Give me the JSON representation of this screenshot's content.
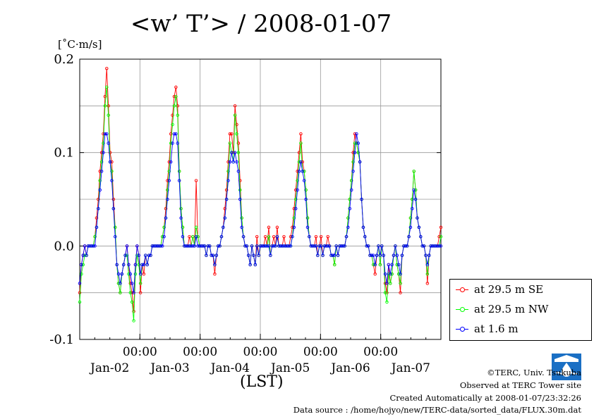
{
  "title": "<w’ T’> / 2008-01-07",
  "unit_label": "[˚C·m/s]",
  "x_axis_label": "(LST)",
  "credits": {
    "copyright": "©TERC, Univ. Tsukuba",
    "site": "Observed at TERC Tower site",
    "created": "Created Automatically at 2008-01-07/23:32:26",
    "source": "Data source : /home/hojyo/new/TERC-data/sorted_data/FLUX.30m.dat"
  },
  "colors": {
    "se": "#ff0000",
    "nw": "#00ff00",
    "low": "#0000ff"
  },
  "chart_data": {
    "type": "line",
    "ylim": [
      -0.1,
      0.2
    ],
    "y_ticks": [
      -0.1,
      0.0,
      0.1,
      0.2
    ],
    "y_tick_labels": [
      "-0.1",
      "0.0",
      "0.1",
      "0.2"
    ],
    "x_range_days": [
      0,
      6
    ],
    "x_tick_time_labels": [
      "00:00",
      "00:00",
      "00:00",
      "00:00",
      "00:00"
    ],
    "x_date_labels": [
      "Jan-02",
      "Jan-03",
      "Jan-04",
      "Jan-05",
      "Jan-06",
      "Jan-07"
    ],
    "grid": true,
    "legend_position": "right",
    "series": [
      {
        "name": "at 29.5 m SE",
        "color": "#ff0000",
        "values": [
          -0.05,
          -0.02,
          -0.01,
          0.0,
          -0.01,
          0.0,
          0.0,
          0.0,
          0.0,
          0.01,
          0.03,
          0.05,
          0.08,
          0.1,
          0.12,
          0.16,
          0.19,
          0.15,
          0.1,
          0.09,
          0.05,
          0.02,
          -0.02,
          -0.04,
          -0.05,
          -0.03,
          -0.02,
          -0.01,
          0.0,
          -0.02,
          -0.04,
          -0.05,
          -0.07,
          -0.02,
          0.0,
          -0.01,
          -0.05,
          -0.02,
          -0.03,
          -0.01,
          -0.02,
          -0.01,
          -0.01,
          0.0,
          0.0,
          0.0,
          0.0,
          0.0,
          0.0,
          0.01,
          0.02,
          0.04,
          0.07,
          0.09,
          0.12,
          0.14,
          0.16,
          0.17,
          0.15,
          0.08,
          0.04,
          0.02,
          0.0,
          0.0,
          0.0,
          0.01,
          0.0,
          0.01,
          0.0,
          0.07,
          0.01,
          0.0,
          0.0,
          0.0,
          0.0,
          -0.01,
          0.0,
          0.0,
          -0.01,
          -0.01,
          -0.03,
          -0.01,
          0.0,
          0.0,
          0.01,
          0.02,
          0.04,
          0.06,
          0.09,
          0.12,
          0.12,
          0.1,
          0.15,
          0.13,
          0.11,
          0.07,
          0.03,
          0.01,
          0.0,
          0.0,
          -0.01,
          -0.02,
          0.0,
          -0.01,
          -0.02,
          0.01,
          -0.01,
          0.0,
          0.0,
          0.0,
          0.01,
          0.0,
          0.02,
          -0.01,
          0.0,
          0.01,
          0.0,
          0.02,
          0.0,
          0.0,
          0.0,
          0.01,
          0.0,
          0.0,
          0.0,
          0.01,
          0.02,
          0.04,
          0.06,
          0.08,
          0.1,
          0.12,
          0.09,
          0.08,
          0.06,
          0.03,
          0.01,
          0.0,
          0.0,
          0.0,
          0.01,
          -0.01,
          0.0,
          0.01,
          -0.01,
          0.0,
          0.0,
          0.01,
          0.0,
          -0.01,
          -0.01,
          -0.02,
          0.0,
          -0.01,
          0.0,
          0.0,
          0.0,
          0.0,
          0.01,
          0.03,
          0.05,
          0.07,
          0.1,
          0.12,
          0.11,
          0.1,
          0.09,
          0.05,
          0.02,
          0.01,
          0.0,
          0.0,
          -0.01,
          -0.01,
          -0.02,
          -0.03,
          -0.01,
          0.0,
          -0.02,
          0.0,
          -0.01,
          -0.04,
          -0.05,
          -0.02,
          -0.04,
          -0.03,
          -0.01,
          0.0,
          -0.02,
          -0.03,
          -0.05,
          -0.01,
          0.0,
          0.0,
          0.0,
          0.01,
          0.03,
          0.05,
          0.08,
          0.06,
          0.03,
          0.02,
          0.01,
          0.0,
          0.0,
          -0.01,
          -0.04,
          -0.01,
          0.0,
          0.0,
          0.0,
          0.0,
          0.0,
          0.01,
          0.02
        ]
      },
      {
        "name": "at 29.5 m NW",
        "color": "#00ff00",
        "values": [
          -0.06,
          -0.03,
          -0.02,
          -0.01,
          -0.01,
          0.0,
          0.0,
          0.0,
          0.0,
          0.01,
          0.02,
          0.04,
          0.07,
          0.09,
          0.11,
          0.15,
          0.17,
          0.14,
          0.09,
          0.08,
          0.04,
          0.02,
          -0.02,
          -0.04,
          -0.05,
          -0.03,
          -0.02,
          -0.01,
          -0.01,
          -0.03,
          -0.05,
          -0.06,
          -0.08,
          -0.03,
          -0.01,
          -0.02,
          -0.04,
          -0.02,
          -0.02,
          -0.01,
          -0.02,
          -0.01,
          -0.01,
          0.0,
          0.0,
          0.0,
          0.0,
          0.0,
          0.0,
          0.01,
          0.02,
          0.03,
          0.06,
          0.08,
          0.11,
          0.13,
          0.15,
          0.16,
          0.14,
          0.08,
          0.04,
          0.02,
          0.0,
          0.0,
          0.0,
          0.0,
          0.0,
          0.01,
          0.0,
          0.02,
          0.01,
          0.0,
          0.0,
          0.0,
          0.0,
          -0.01,
          0.0,
          0.0,
          -0.01,
          -0.01,
          -0.02,
          -0.01,
          0.0,
          0.0,
          0.01,
          0.02,
          0.03,
          0.05,
          0.08,
          0.11,
          0.1,
          0.09,
          0.14,
          0.12,
          0.1,
          0.06,
          0.03,
          0.01,
          0.0,
          0.0,
          -0.01,
          -0.02,
          0.0,
          -0.01,
          -0.02,
          0.0,
          -0.01,
          0.0,
          0.0,
          0.0,
          0.0,
          0.0,
          0.01,
          -0.01,
          0.0,
          0.0,
          0.0,
          0.01,
          0.0,
          0.0,
          0.0,
          0.0,
          0.0,
          0.0,
          0.0,
          0.0,
          0.01,
          0.03,
          0.05,
          0.07,
          0.09,
          0.11,
          0.08,
          0.08,
          0.06,
          0.03,
          0.01,
          0.0,
          0.0,
          0.0,
          0.0,
          -0.01,
          0.0,
          0.0,
          -0.01,
          0.0,
          0.0,
          0.0,
          0.0,
          -0.01,
          -0.01,
          -0.02,
          0.0,
          -0.01,
          0.0,
          0.0,
          0.0,
          0.0,
          0.01,
          0.03,
          0.05,
          0.07,
          0.09,
          0.11,
          0.11,
          0.1,
          0.09,
          0.05,
          0.02,
          0.01,
          0.0,
          0.0,
          -0.01,
          -0.01,
          -0.02,
          -0.02,
          -0.01,
          0.0,
          -0.02,
          0.0,
          -0.01,
          -0.05,
          -0.06,
          -0.03,
          -0.04,
          -0.03,
          -0.01,
          0.0,
          -0.02,
          -0.03,
          -0.04,
          -0.01,
          0.0,
          0.0,
          0.0,
          0.01,
          0.03,
          0.05,
          0.08,
          0.06,
          0.03,
          0.02,
          0.01,
          0.0,
          0.0,
          -0.01,
          -0.03,
          -0.01,
          0.0,
          0.0,
          0.0,
          0.0,
          0.0,
          0.0,
          0.01
        ]
      },
      {
        "name": "at 1.6 m",
        "color": "#0000ff",
        "values": [
          -0.04,
          -0.02,
          -0.01,
          0.0,
          -0.01,
          0.0,
          0.0,
          0.0,
          0.0,
          0.0,
          0.02,
          0.04,
          0.06,
          0.08,
          0.1,
          0.12,
          0.12,
          0.11,
          0.09,
          0.07,
          0.04,
          0.01,
          -0.02,
          -0.03,
          -0.04,
          -0.03,
          -0.02,
          -0.01,
          0.0,
          -0.02,
          -0.03,
          -0.04,
          -0.05,
          -0.02,
          0.0,
          -0.01,
          -0.03,
          -0.02,
          -0.02,
          -0.01,
          -0.02,
          -0.01,
          -0.01,
          0.0,
          0.0,
          0.0,
          0.0,
          0.0,
          0.0,
          0.0,
          0.01,
          0.03,
          0.05,
          0.07,
          0.09,
          0.11,
          0.12,
          0.12,
          0.11,
          0.07,
          0.03,
          0.01,
          0.0,
          0.0,
          0.0,
          0.0,
          0.0,
          0.0,
          0.0,
          0.01,
          0.0,
          0.0,
          0.0,
          0.0,
          0.0,
          -0.01,
          0.0,
          0.0,
          -0.01,
          -0.01,
          -0.02,
          -0.01,
          0.0,
          0.0,
          0.01,
          0.02,
          0.03,
          0.05,
          0.07,
          0.09,
          0.1,
          0.09,
          0.1,
          0.09,
          0.08,
          0.05,
          0.02,
          0.01,
          0.0,
          0.0,
          -0.01,
          -0.02,
          0.0,
          -0.01,
          -0.02,
          0.0,
          -0.01,
          0.0,
          0.0,
          0.0,
          0.0,
          0.0,
          0.0,
          -0.01,
          0.0,
          0.0,
          0.0,
          0.01,
          0.0,
          0.0,
          0.0,
          0.0,
          0.0,
          0.0,
          0.0,
          0.0,
          0.01,
          0.02,
          0.04,
          0.06,
          0.08,
          0.09,
          0.08,
          0.07,
          0.05,
          0.02,
          0.01,
          0.0,
          0.0,
          0.0,
          0.0,
          -0.01,
          0.0,
          0.0,
          -0.01,
          0.0,
          0.0,
          0.0,
          0.0,
          -0.01,
          -0.01,
          -0.01,
          0.0,
          -0.01,
          0.0,
          0.0,
          0.0,
          0.0,
          0.01,
          0.02,
          0.04,
          0.06,
          0.08,
          0.1,
          0.12,
          0.11,
          0.09,
          0.05,
          0.02,
          0.01,
          0.0,
          0.0,
          -0.01,
          -0.01,
          -0.01,
          -0.02,
          -0.01,
          0.0,
          -0.01,
          0.0,
          -0.01,
          -0.03,
          -0.04,
          -0.02,
          -0.03,
          -0.02,
          -0.01,
          0.0,
          -0.01,
          -0.02,
          -0.03,
          -0.01,
          0.0,
          0.0,
          0.0,
          0.01,
          0.02,
          0.04,
          0.06,
          0.05,
          0.03,
          0.02,
          0.01,
          0.0,
          0.0,
          -0.01,
          -0.02,
          -0.01,
          0.0,
          0.0,
          0.0,
          0.0,
          0.0,
          0.0,
          0.0
        ]
      }
    ]
  }
}
